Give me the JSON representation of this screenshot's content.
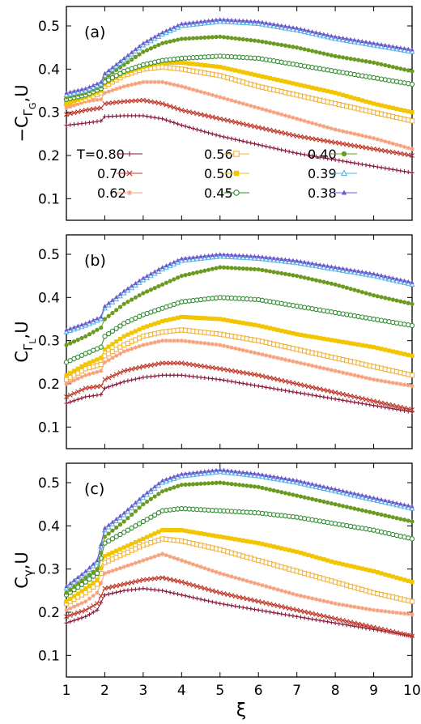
{
  "figure": {
    "xlabel": "ξ",
    "xticks": [
      "1",
      "2",
      "3",
      "4",
      "5",
      "6",
      "7",
      "8",
      "9",
      "10"
    ]
  },
  "legend": {
    "prefix": "T=",
    "entries": [
      {
        "label": "0.80",
        "color": "#8b1a3a",
        "marker": "plus"
      },
      {
        "label": "0.70",
        "color": "#c0392b",
        "marker": "cross"
      },
      {
        "label": "0.62",
        "color": "#f5a07a",
        "marker": "star"
      },
      {
        "label": "0.56",
        "color": "#f3b23a",
        "marker": "open-square"
      },
      {
        "label": "0.50",
        "color": "#f2c500",
        "marker": "filled-square"
      },
      {
        "label": "0.45",
        "color": "#2e8b2e",
        "marker": "open-circle"
      },
      {
        "label": "0.40",
        "color": "#6a9a1f",
        "marker": "filled-circle"
      },
      {
        "label": "0.39",
        "color": "#5ab4e5",
        "marker": "open-triangle"
      },
      {
        "label": "0.38",
        "color": "#6a5acd",
        "marker": "filled-triangle"
      }
    ]
  },
  "chart_data": [
    {
      "type": "line",
      "panel_label": "(a)",
      "ylabel_main": "−C",
      "ylabel_sub": "Γ",
      "ylabel_subsub": "G",
      "ylabel_tail": ",U",
      "xlim": [
        1,
        10
      ],
      "ylim": [
        0.05,
        0.545
      ],
      "yticks": [
        "0.1",
        "0.2",
        "0.3",
        "0.4",
        "0.5"
      ],
      "x": [
        1,
        1.5,
        1.9,
        2,
        2.5,
        3,
        3.5,
        4,
        5,
        6,
        7,
        8,
        9,
        10
      ],
      "series": [
        {
          "name": "0.80",
          "values": [
            0.27,
            0.275,
            0.28,
            0.29,
            0.292,
            0.292,
            0.285,
            0.27,
            0.245,
            0.225,
            0.205,
            0.19,
            0.175,
            0.16
          ]
        },
        {
          "name": "0.70",
          "values": [
            0.295,
            0.305,
            0.31,
            0.32,
            0.325,
            0.328,
            0.32,
            0.305,
            0.285,
            0.265,
            0.245,
            0.23,
            0.215,
            0.2
          ]
        },
        {
          "name": "0.62",
          "values": [
            0.31,
            0.325,
            0.33,
            0.345,
            0.36,
            0.37,
            0.37,
            0.36,
            0.335,
            0.31,
            0.285,
            0.26,
            0.24,
            0.215
          ]
        },
        {
          "name": "0.56",
          "values": [
            0.32,
            0.33,
            0.345,
            0.36,
            0.385,
            0.4,
            0.405,
            0.4,
            0.385,
            0.36,
            0.34,
            0.32,
            0.3,
            0.28
          ]
        },
        {
          "name": "0.50",
          "values": [
            0.32,
            0.335,
            0.35,
            0.365,
            0.39,
            0.405,
            0.415,
            0.415,
            0.405,
            0.385,
            0.365,
            0.345,
            0.32,
            0.3
          ]
        },
        {
          "name": "0.45",
          "values": [
            0.33,
            0.34,
            0.355,
            0.37,
            0.395,
            0.41,
            0.42,
            0.425,
            0.43,
            0.425,
            0.41,
            0.395,
            0.38,
            0.365
          ]
        },
        {
          "name": "0.40",
          "values": [
            0.335,
            0.345,
            0.36,
            0.38,
            0.41,
            0.44,
            0.46,
            0.47,
            0.475,
            0.465,
            0.45,
            0.43,
            0.415,
            0.395
          ]
        },
        {
          "name": "0.39",
          "values": [
            0.34,
            0.35,
            0.365,
            0.385,
            0.42,
            0.455,
            0.48,
            0.5,
            0.51,
            0.505,
            0.49,
            0.47,
            0.455,
            0.44
          ]
        },
        {
          "name": "0.38",
          "values": [
            0.345,
            0.355,
            0.37,
            0.39,
            0.425,
            0.46,
            0.485,
            0.505,
            0.515,
            0.51,
            0.495,
            0.475,
            0.46,
            0.445
          ]
        }
      ]
    },
    {
      "type": "line",
      "panel_label": "(b)",
      "ylabel_main": "C",
      "ylabel_sub": "Γ",
      "ylabel_subsub": "L",
      "ylabel_tail": ",U",
      "xlim": [
        1,
        10
      ],
      "ylim": [
        0.05,
        0.545
      ],
      "yticks": [
        "0.1",
        "0.2",
        "0.3",
        "0.4",
        "0.5"
      ],
      "x": [
        1,
        1.5,
        1.9,
        2,
        2.5,
        3,
        3.5,
        4,
        5,
        6,
        7,
        8,
        9,
        10
      ],
      "series": [
        {
          "name": "0.80",
          "values": [
            0.155,
            0.17,
            0.175,
            0.19,
            0.205,
            0.215,
            0.22,
            0.22,
            0.21,
            0.195,
            0.18,
            0.165,
            0.15,
            0.135
          ]
        },
        {
          "name": "0.70",
          "values": [
            0.17,
            0.19,
            0.195,
            0.21,
            0.23,
            0.24,
            0.248,
            0.248,
            0.235,
            0.22,
            0.2,
            0.18,
            0.16,
            0.14
          ]
        },
        {
          "name": "0.62",
          "values": [
            0.2,
            0.22,
            0.23,
            0.25,
            0.275,
            0.29,
            0.3,
            0.3,
            0.29,
            0.27,
            0.25,
            0.23,
            0.21,
            0.195
          ]
        },
        {
          "name": "0.56",
          "values": [
            0.21,
            0.235,
            0.245,
            0.265,
            0.29,
            0.31,
            0.32,
            0.325,
            0.315,
            0.3,
            0.28,
            0.26,
            0.24,
            0.22
          ]
        },
        {
          "name": "0.50",
          "values": [
            0.22,
            0.245,
            0.26,
            0.28,
            0.31,
            0.33,
            0.345,
            0.355,
            0.35,
            0.335,
            0.315,
            0.3,
            0.285,
            0.265
          ]
        },
        {
          "name": "0.45",
          "values": [
            0.25,
            0.27,
            0.285,
            0.31,
            0.34,
            0.36,
            0.375,
            0.39,
            0.4,
            0.395,
            0.38,
            0.365,
            0.35,
            0.335
          ]
        },
        {
          "name": "0.40",
          "values": [
            0.29,
            0.31,
            0.33,
            0.35,
            0.385,
            0.41,
            0.43,
            0.45,
            0.47,
            0.465,
            0.45,
            0.43,
            0.405,
            0.385
          ]
        },
        {
          "name": "0.39",
          "values": [
            0.32,
            0.335,
            0.35,
            0.375,
            0.41,
            0.44,
            0.465,
            0.485,
            0.495,
            0.49,
            0.48,
            0.465,
            0.45,
            0.43
          ]
        },
        {
          "name": "0.38",
          "values": [
            0.325,
            0.34,
            0.355,
            0.38,
            0.415,
            0.445,
            0.47,
            0.49,
            0.5,
            0.495,
            0.485,
            0.47,
            0.455,
            0.435
          ]
        }
      ]
    },
    {
      "type": "line",
      "panel_label": "(c)",
      "ylabel_main": "C",
      "ylabel_sub": "γ",
      "ylabel_subsub": "",
      "ylabel_tail": ",U",
      "xlim": [
        1,
        10
      ],
      "ylim": [
        0.05,
        0.545
      ],
      "yticks": [
        "0.1",
        "0.2",
        "0.3",
        "0.4",
        "0.5"
      ],
      "x": [
        1,
        1.5,
        1.8,
        2,
        2.5,
        3,
        3.5,
        4,
        5,
        6,
        7,
        8,
        9,
        10
      ],
      "series": [
        {
          "name": "0.80",
          "values": [
            0.175,
            0.19,
            0.205,
            0.24,
            0.25,
            0.255,
            0.25,
            0.24,
            0.22,
            0.205,
            0.19,
            0.175,
            0.16,
            0.145
          ]
        },
        {
          "name": "0.70",
          "values": [
            0.19,
            0.205,
            0.22,
            0.255,
            0.265,
            0.275,
            0.28,
            0.27,
            0.245,
            0.225,
            0.205,
            0.185,
            0.165,
            0.145
          ]
        },
        {
          "name": "0.62",
          "values": [
            0.205,
            0.225,
            0.245,
            0.29,
            0.305,
            0.32,
            0.335,
            0.32,
            0.29,
            0.265,
            0.24,
            0.22,
            0.205,
            0.195
          ]
        },
        {
          "name": "0.56",
          "values": [
            0.22,
            0.245,
            0.265,
            0.315,
            0.335,
            0.355,
            0.37,
            0.365,
            0.345,
            0.32,
            0.295,
            0.27,
            0.245,
            0.225
          ]
        },
        {
          "name": "0.50",
          "values": [
            0.225,
            0.255,
            0.275,
            0.33,
            0.35,
            0.37,
            0.39,
            0.39,
            0.375,
            0.36,
            0.34,
            0.315,
            0.295,
            0.27
          ]
        },
        {
          "name": "0.45",
          "values": [
            0.24,
            0.27,
            0.29,
            0.36,
            0.385,
            0.41,
            0.435,
            0.44,
            0.435,
            0.43,
            0.42,
            0.405,
            0.39,
            0.37
          ]
        },
        {
          "name": "0.40",
          "values": [
            0.245,
            0.28,
            0.3,
            0.375,
            0.41,
            0.45,
            0.48,
            0.495,
            0.5,
            0.49,
            0.47,
            0.45,
            0.43,
            0.41
          ]
        },
        {
          "name": "0.39",
          "values": [
            0.255,
            0.29,
            0.315,
            0.39,
            0.425,
            0.465,
            0.5,
            0.515,
            0.525,
            0.515,
            0.5,
            0.48,
            0.46,
            0.44
          ]
        },
        {
          "name": "0.38",
          "values": [
            0.26,
            0.295,
            0.32,
            0.395,
            0.43,
            0.47,
            0.505,
            0.52,
            0.53,
            0.52,
            0.505,
            0.485,
            0.465,
            0.445
          ]
        }
      ]
    }
  ]
}
